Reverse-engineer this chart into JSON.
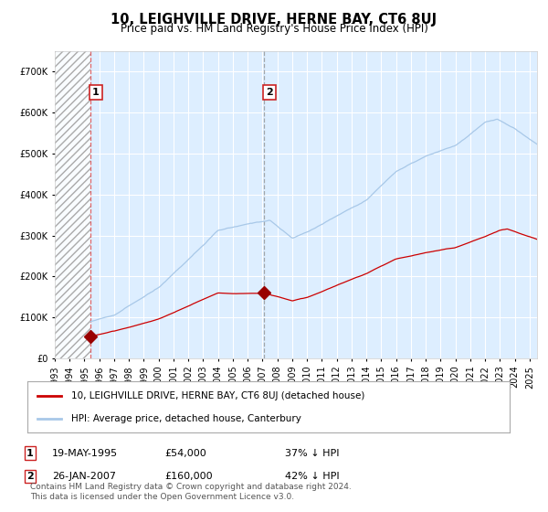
{
  "title": "10, LEIGHVILLE DRIVE, HERNE BAY, CT6 8UJ",
  "subtitle": "Price paid vs. HM Land Registry's House Price Index (HPI)",
  "title_fontsize": 10.5,
  "subtitle_fontsize": 8.5,
  "hpi_line_color": "#a8c8e8",
  "price_line_color": "#cc0000",
  "marker_color": "#990000",
  "bg_color": "#ffffff",
  "plot_bg_color": "#ddeeff",
  "hatch_bg_color": "#e8e8f0",
  "grid_color": "#ffffff",
  "ylim": [
    0,
    750000
  ],
  "yticks": [
    0,
    100000,
    200000,
    300000,
    400000,
    500000,
    600000,
    700000
  ],
  "ytick_labels": [
    "£0",
    "£100K",
    "£200K",
    "£300K",
    "£400K",
    "£500K",
    "£600K",
    "£700K"
  ],
  "xstart": 1993.0,
  "xend": 2025.5,
  "sale1_date_idx": 1995.38,
  "sale1_price": 54000,
  "sale1_label": "1",
  "sale2_date_idx": 2007.07,
  "sale2_price": 160000,
  "sale2_label": "2",
  "legend_line1": "10, LEIGHVILLE DRIVE, HERNE BAY, CT6 8UJ (detached house)",
  "legend_line2": "HPI: Average price, detached house, Canterbury",
  "note1_date": "19-MAY-1995",
  "note1_price": "£54,000",
  "note1_hpi": "37% ↓ HPI",
  "note2_date": "26-JAN-2007",
  "note2_price": "£160,000",
  "note2_hpi": "42% ↓ HPI",
  "footer": "Contains HM Land Registry data © Crown copyright and database right 2024.\nThis data is licensed under the Open Government Licence v3.0."
}
